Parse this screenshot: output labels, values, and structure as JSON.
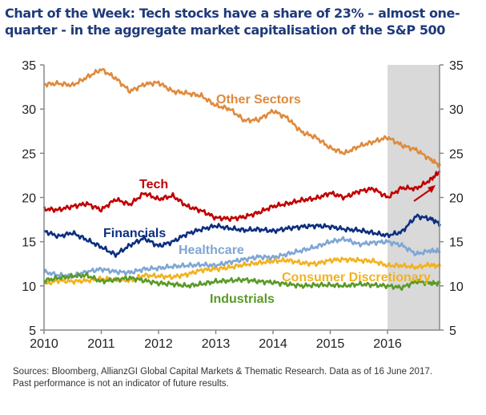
{
  "title": "Chart of the Week: Tech stocks have a share of 23% – almost one-quarter - in the aggregate market capitalisation of the S&P 500",
  "source_line1": "Sources: Bloomberg, AllianzGI Global Capital Markets & Thematic Research. Data as of 16 June 2017.",
  "source_line2": "Past performance is not an indicator of future results.",
  "chart_data": {
    "type": "line",
    "title": "Chart of the Week: Tech stocks have a share of 23% – almost one-quarter - in the aggregate market capitalisation of the S&P 500",
    "xlabel": "",
    "ylabel": "",
    "xlim": [
      2010,
      2016.92
    ],
    "ylim": [
      5,
      35
    ],
    "x_ticks": [
      "2010",
      "2011",
      "2012",
      "2013",
      "2014",
      "2015",
      "2016"
    ],
    "y_ticks": [
      "5",
      "10",
      "15",
      "20",
      "25",
      "30",
      "35"
    ],
    "grid": false,
    "shaded_region": {
      "from": 2016.0,
      "to": 2016.92,
      "color": "#d9d9d9"
    },
    "x": [
      2010.0,
      2010.25,
      2010.5,
      2010.75,
      2011.0,
      2011.25,
      2011.5,
      2011.75,
      2012.0,
      2012.25,
      2012.5,
      2012.75,
      2013.0,
      2013.25,
      2013.5,
      2013.75,
      2014.0,
      2014.25,
      2014.5,
      2014.75,
      2015.0,
      2015.25,
      2015.5,
      2015.75,
      2016.0,
      2016.25,
      2016.5,
      2016.75,
      2016.92
    ],
    "series": [
      {
        "name": "Other Sectors",
        "color": "#e08a3c",
        "values": [
          32.8,
          32.9,
          32.7,
          33.6,
          34.5,
          33.5,
          32.0,
          32.8,
          33.0,
          32.0,
          31.8,
          31.5,
          30.4,
          30.0,
          28.7,
          28.8,
          29.8,
          29.0,
          27.4,
          26.8,
          25.6,
          25.0,
          25.8,
          26.3,
          26.8,
          25.9,
          25.4,
          24.3,
          23.6
        ]
      },
      {
        "name": "Tech",
        "color": "#c00000",
        "values": [
          18.7,
          18.6,
          19.0,
          19.3,
          18.6,
          19.8,
          19.2,
          20.5,
          19.8,
          20.2,
          19.0,
          18.5,
          17.7,
          17.6,
          17.8,
          18.3,
          19.0,
          19.3,
          19.7,
          19.9,
          20.5,
          20.0,
          20.7,
          21.0,
          20.0,
          21.1,
          21.0,
          22.0,
          23.0
        ]
      },
      {
        "name": "Financials",
        "color": "#0c2f80",
        "values": [
          16.2,
          15.6,
          16.0,
          15.2,
          14.4,
          13.5,
          14.6,
          15.4,
          14.5,
          15.0,
          15.9,
          16.4,
          16.8,
          16.5,
          16.3,
          16.4,
          16.2,
          16.5,
          16.7,
          16.8,
          16.7,
          16.4,
          16.3,
          16.0,
          15.7,
          16.1,
          17.9,
          17.6,
          17.0
        ]
      },
      {
        "name": "Healthcare",
        "color": "#7fa6d4",
        "values": [
          11.6,
          11.2,
          11.1,
          11.6,
          11.9,
          11.6,
          11.5,
          11.9,
          12.0,
          12.2,
          12.3,
          12.4,
          12.3,
          12.7,
          13.0,
          13.3,
          13.2,
          13.6,
          14.0,
          14.4,
          15.0,
          15.3,
          14.7,
          14.9,
          15.0,
          14.6,
          13.6,
          14.0,
          13.9
        ]
      },
      {
        "name": "Consumer Discretionary",
        "color": "#f2b21f",
        "values": [
          10.2,
          10.6,
          10.5,
          10.6,
          10.8,
          10.7,
          10.6,
          11.2,
          11.1,
          11.0,
          11.3,
          11.8,
          11.9,
          12.1,
          12.4,
          12.6,
          12.8,
          12.9,
          12.6,
          12.5,
          12.9,
          13.0,
          12.9,
          12.8,
          12.3,
          12.3,
          12.1,
          12.4,
          12.2
        ]
      },
      {
        "name": "Industrials",
        "color": "#5a9a28",
        "values": [
          10.6,
          10.9,
          11.1,
          11.2,
          10.5,
          10.7,
          10.9,
          10.6,
          10.3,
          10.2,
          10.0,
          10.2,
          10.5,
          10.6,
          10.7,
          10.5,
          10.4,
          10.2,
          10.0,
          10.1,
          10.1,
          10.0,
          10.2,
          10.1,
          10.0,
          9.8,
          10.5,
          10.3,
          10.3
        ]
      }
    ],
    "annotations": [
      {
        "text": "Other Sectors",
        "series": "Other Sectors"
      },
      {
        "text": "Tech",
        "series": "Tech"
      },
      {
        "text": "Financials",
        "series": "Financials"
      },
      {
        "text": "Healthcare",
        "series": "Healthcare"
      },
      {
        "text": "Consumer Discretionary",
        "series": "Consumer Discretionary"
      },
      {
        "text": "Industrials",
        "series": "Industrials"
      },
      {
        "text": "upward-arrow",
        "series": "Tech"
      }
    ]
  }
}
